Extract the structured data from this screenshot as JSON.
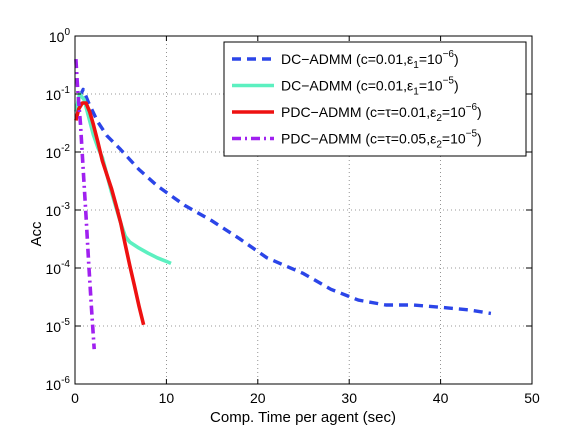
{
  "chart_data": {
    "type": "line",
    "title": "",
    "xlabel": "Comp. Time per agent (sec)",
    "ylabel": "Acc",
    "xlim": [
      0,
      50
    ],
    "ylim": [
      1e-06,
      1
    ],
    "yscale": "log",
    "grid": true,
    "grid_style": "dotted",
    "legend_position": "top-right",
    "x_ticks": [
      "0",
      "10",
      "20",
      "30",
      "40",
      "50"
    ],
    "y_ticks": [
      {
        "base": "10",
        "exp": "-6",
        "value": 1e-06
      },
      {
        "base": "10",
        "exp": "-5",
        "value": 1e-05
      },
      {
        "base": "10",
        "exp": "-4",
        "value": 0.0001
      },
      {
        "base": "10",
        "exp": "-3",
        "value": 0.001
      },
      {
        "base": "10",
        "exp": "-2",
        "value": 0.01
      },
      {
        "base": "10",
        "exp": "-1",
        "value": 0.1
      },
      {
        "base": "10",
        "exp": "0",
        "value": 1
      }
    ],
    "series": [
      {
        "name": "DC−ADMM (c=0.01,ε1=10−6)",
        "legend": {
          "prefix": "DC−ADMM (c=0.01,ε",
          "sub": "1",
          "mid": "=10",
          "sup": "−6",
          "suffix": ")"
        },
        "color": "#2b45e8",
        "style": "dashed",
        "points": [
          [
            0.1,
            0.05
          ],
          [
            0.5,
            0.09
          ],
          [
            0.9,
            0.12
          ],
          [
            1.5,
            0.07
          ],
          [
            2.5,
            0.033
          ],
          [
            3.5,
            0.019
          ],
          [
            5,
            0.011
          ],
          [
            7,
            0.005
          ],
          [
            9,
            0.0026
          ],
          [
            12,
            0.0012
          ],
          [
            15,
            0.00065
          ],
          [
            18,
            0.00032
          ],
          [
            21,
            0.00015
          ],
          [
            25,
            8e-05
          ],
          [
            28,
            4.3e-05
          ],
          [
            31,
            2.8e-05
          ],
          [
            34,
            2.3e-05
          ],
          [
            37,
            2.3e-05
          ],
          [
            40,
            2.1e-05
          ],
          [
            43,
            1.9e-05
          ],
          [
            45.5,
            1.65e-05
          ]
        ]
      },
      {
        "name": "DC−ADMM (c=0.01,ε1=10−5)",
        "legend": {
          "prefix": "DC−ADMM (c=0.01,ε",
          "sub": "1",
          "mid": "=10",
          "sup": "−5",
          "suffix": ")"
        },
        "color": "#5cf0c0",
        "style": "solid",
        "points": [
          [
            0.1,
            0.05
          ],
          [
            0.5,
            0.1
          ],
          [
            1,
            0.08
          ],
          [
            1.5,
            0.04
          ],
          [
            2,
            0.02
          ],
          [
            2.5,
            0.012
          ],
          [
            3,
            0.008
          ],
          [
            3.5,
            0.004
          ],
          [
            4,
            0.002
          ],
          [
            4.5,
            0.0011
          ],
          [
            5,
            0.0006
          ],
          [
            5.5,
            0.00035
          ],
          [
            6,
            0.00028
          ],
          [
            7,
            0.00022
          ],
          [
            8,
            0.00018
          ],
          [
            9,
            0.00015
          ],
          [
            10,
            0.00013
          ],
          [
            10.5,
            0.00012
          ]
        ]
      },
      {
        "name": "PDC−ADMM (c=τ=0.01,ε2=10−6)",
        "legend": {
          "prefix": "PDC−ADMM (c=τ=0.01,ε",
          "sub": "2",
          "mid": "=10",
          "sup": "−6",
          "suffix": ")"
        },
        "color": "#ee1111",
        "style": "solid",
        "points": [
          [
            0.1,
            0.035
          ],
          [
            0.4,
            0.055
          ],
          [
            0.8,
            0.07
          ],
          [
            1.2,
            0.07
          ],
          [
            1.6,
            0.05
          ],
          [
            2,
            0.03
          ],
          [
            2.5,
            0.015
          ],
          [
            3,
            0.007
          ],
          [
            3.5,
            0.004
          ],
          [
            4,
            0.0023
          ],
          [
            4.5,
            0.0012
          ],
          [
            5,
            0.0006
          ],
          [
            5.5,
            0.00025
          ],
          [
            6,
            0.00011
          ],
          [
            6.5,
            5e-05
          ],
          [
            7,
            2.2e-05
          ],
          [
            7.5,
            1.05e-05
          ]
        ]
      },
      {
        "name": "PDC−ADMM (c=τ=0.05,ε2=10−5)",
        "legend": {
          "prefix": "PDC−ADMM (c=τ=0.05,ε",
          "sub": "2",
          "mid": "=10",
          "sup": "−5",
          "suffix": ")"
        },
        "color": "#a020f0",
        "style": "dashdot",
        "points": [
          [
            0.1,
            0.4
          ],
          [
            0.3,
            0.12
          ],
          [
            0.6,
            0.03
          ],
          [
            0.9,
            0.005
          ],
          [
            1.2,
            0.0008
          ],
          [
            1.5,
            0.00012
          ],
          [
            1.8,
            2e-05
          ],
          [
            2.1,
            4e-06
          ]
        ]
      }
    ]
  }
}
